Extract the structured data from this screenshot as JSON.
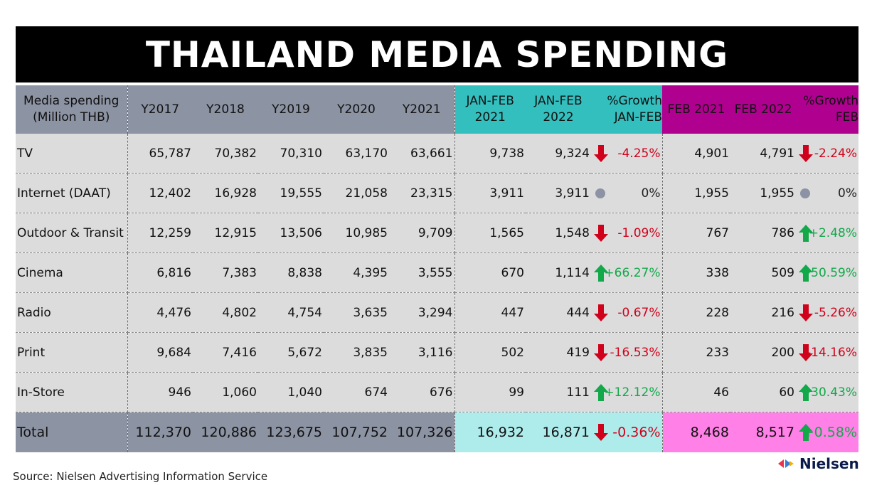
{
  "title": "THAILAND MEDIA SPENDING",
  "source": "Source: Nielsen Advertising Information Service",
  "brand": "Nielsen",
  "colors": {
    "header_gray": "#8c93a3",
    "header_teal": "#34bfbf",
    "header_magenta": "#b0008f",
    "total_teal": "#aeecec",
    "total_magenta": "#ff80e6",
    "down": "#d0021b",
    "up": "#13a84a",
    "neutral_dot": "#8d93a4"
  },
  "chart_data": {
    "type": "table",
    "title": "THAILAND MEDIA SPENDING",
    "columns": [
      {
        "l1": "Media spending",
        "l2": "(Million THB)"
      },
      {
        "l1": "Y2017",
        "l2": ""
      },
      {
        "l1": "Y2018",
        "l2": ""
      },
      {
        "l1": "Y2019",
        "l2": ""
      },
      {
        "l1": "Y2020",
        "l2": ""
      },
      {
        "l1": "Y2021",
        "l2": ""
      },
      {
        "l1": "JAN-FEB",
        "l2": "2021"
      },
      {
        "l1": "JAN-FEB",
        "l2": "2022"
      },
      {
        "l1": "%Growth",
        "l2": "JAN-FEB"
      },
      {
        "l1": "FEB 2021",
        "l2": ""
      },
      {
        "l1": "FEB 2022",
        "l2": ""
      },
      {
        "l1": "%Growth",
        "l2": "FEB"
      }
    ],
    "rows": [
      {
        "media": "TV",
        "y2017": "65,787",
        "y2018": "70,382",
        "y2019": "70,310",
        "y2020": "63,170",
        "y2021": "63,661",
        "janfeb2021": "9,738",
        "janfeb2022": "9,324",
        "growth_janfeb": "-4.25%",
        "trend_janfeb": "down",
        "feb2021": "4,901",
        "feb2022": "4,791",
        "growth_feb": "-2.24%",
        "trend_feb": "down"
      },
      {
        "media": "Internet (DAAT)",
        "y2017": "12,402",
        "y2018": "16,928",
        "y2019": "19,555",
        "y2020": "21,058",
        "y2021": "23,315",
        "janfeb2021": "3,911",
        "janfeb2022": "3,911",
        "growth_janfeb": "0%",
        "trend_janfeb": "flat",
        "feb2021": "1,955",
        "feb2022": "1,955",
        "growth_feb": "0%",
        "trend_feb": "flat"
      },
      {
        "media": "Outdoor & Transit",
        "y2017": "12,259",
        "y2018": "12,915",
        "y2019": "13,506",
        "y2020": "10,985",
        "y2021": "9,709",
        "janfeb2021": "1,565",
        "janfeb2022": "1,548",
        "growth_janfeb": "-1.09%",
        "trend_janfeb": "down",
        "feb2021": "767",
        "feb2022": "786",
        "growth_feb": "+2.48%",
        "trend_feb": "up"
      },
      {
        "media": "Cinema",
        "y2017": "6,816",
        "y2018": "7,383",
        "y2019": "8,838",
        "y2020": "4,395",
        "y2021": "3,555",
        "janfeb2021": "670",
        "janfeb2022": "1,114",
        "growth_janfeb": "+66.27%",
        "trend_janfeb": "up",
        "feb2021": "338",
        "feb2022": "509",
        "growth_feb": "+50.59%",
        "trend_feb": "up"
      },
      {
        "media": "Radio",
        "y2017": "4,476",
        "y2018": "4,802",
        "y2019": "4,754",
        "y2020": "3,635",
        "y2021": "3,294",
        "janfeb2021": "447",
        "janfeb2022": "444",
        "growth_janfeb": "-0.67%",
        "trend_janfeb": "down",
        "feb2021": "228",
        "feb2022": "216",
        "growth_feb": "-5.26%",
        "trend_feb": "down"
      },
      {
        "media": "Print",
        "y2017": "9,684",
        "y2018": "7,416",
        "y2019": "5,672",
        "y2020": "3,835",
        "y2021": "3,116",
        "janfeb2021": "502",
        "janfeb2022": "419",
        "growth_janfeb": "-16.53%",
        "trend_janfeb": "down",
        "feb2021": "233",
        "feb2022": "200",
        "growth_feb": "-14.16%",
        "trend_feb": "down"
      },
      {
        "media": "In-Store",
        "y2017": "946",
        "y2018": "1,060",
        "y2019": "1,040",
        "y2020": "674",
        "y2021": "676",
        "janfeb2021": "99",
        "janfeb2022": "111",
        "growth_janfeb": "+12.12%",
        "trend_janfeb": "up",
        "feb2021": "46",
        "feb2022": "60",
        "growth_feb": "+30.43%",
        "trend_feb": "up"
      }
    ],
    "total": {
      "media": "Total",
      "y2017": "112,370",
      "y2018": "120,886",
      "y2019": "123,675",
      "y2020": "107,752",
      "y2021": "107,326",
      "janfeb2021": "16,932",
      "janfeb2022": "16,871",
      "growth_janfeb": "-0.36%",
      "trend_janfeb": "down",
      "feb2021": "8,468",
      "feb2022": "8,517",
      "growth_feb": "+0.58%",
      "trend_feb": "up"
    }
  }
}
